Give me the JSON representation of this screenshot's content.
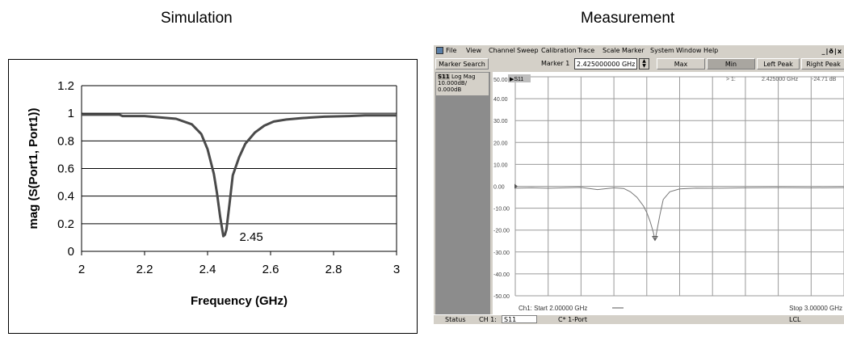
{
  "headings": {
    "simulation": "Simulation",
    "measurement": "Measurement"
  },
  "chart_data": [
    {
      "type": "line",
      "title": "",
      "xlabel": "Frequency (GHz)",
      "ylabel": "mag (S(Port1, Port1))",
      "xlim": [
        2,
        3
      ],
      "ylim": [
        0,
        1.2
      ],
      "xticks": [
        "2",
        "2.2",
        "2.4",
        "2.6",
        "2.8",
        "3"
      ],
      "yticks": [
        "0",
        "0.2",
        "0.4",
        "0.6",
        "0.8",
        "1",
        "1.2"
      ],
      "grid": "horizontal",
      "legend": "none",
      "annotation": {
        "text": "2.45",
        "x": 2.45,
        "y": 0.11
      },
      "series": [
        {
          "color": "#4a4a4a",
          "x": [
            2.0,
            2.12,
            2.13,
            2.2,
            2.3,
            2.35,
            2.38,
            2.4,
            2.42,
            2.43,
            2.44,
            2.45,
            2.455,
            2.46,
            2.47,
            2.48,
            2.5,
            2.52,
            2.55,
            2.58,
            2.61,
            2.65,
            2.7,
            2.77,
            2.85,
            2.9,
            3.0
          ],
          "y": [
            0.99,
            0.99,
            0.98,
            0.98,
            0.96,
            0.92,
            0.85,
            0.74,
            0.56,
            0.42,
            0.25,
            0.11,
            0.12,
            0.16,
            0.35,
            0.55,
            0.68,
            0.78,
            0.86,
            0.91,
            0.94,
            0.955,
            0.965,
            0.975,
            0.98,
            0.985,
            0.985
          ]
        }
      ]
    },
    {
      "type": "line",
      "title": "",
      "trace_label": "S11",
      "format_label": "Log Mag",
      "scale_label": "10.000dB/",
      "ref_label": "0.000dB",
      "xlim": [
        2.0,
        3.0
      ],
      "ylim": [
        -50,
        50
      ],
      "yticks": [
        "50.00",
        "40.00",
        "30.00",
        "20.00",
        "10.00",
        "0.00",
        "-10.00",
        "-20.00",
        "-30.00",
        "-40.00",
        "-50.00"
      ],
      "grid": "on",
      "legend": "none",
      "marker_readout": {
        "number": "> 1:",
        "frequency": "2.425000 GHz",
        "value": "-24.71 dB",
        "x": 2.425,
        "y": -24.71
      },
      "start_label": "Ch1: Start  2.00000 GHz",
      "stop_label": "Stop  3.00000 GHz",
      "series": [
        {
          "color": "#777777",
          "x": [
            2.0,
            2.05,
            2.1,
            2.15,
            2.2,
            2.25,
            2.3,
            2.33,
            2.35,
            2.37,
            2.39,
            2.4,
            2.41,
            2.42,
            2.425,
            2.43,
            2.44,
            2.45,
            2.47,
            2.5,
            2.55,
            2.6,
            2.7,
            2.8,
            2.9,
            3.0
          ],
          "y": [
            -0.8,
            -0.7,
            -0.9,
            -0.7,
            -0.5,
            -1.5,
            -0.7,
            -1.0,
            -2.5,
            -5.0,
            -9.0,
            -12.0,
            -16.0,
            -21.0,
            -24.71,
            -21.0,
            -13.0,
            -6.0,
            -2.5,
            -1.2,
            -0.8,
            -0.9,
            -0.7,
            -0.6,
            -0.7,
            -0.6
          ]
        }
      ]
    }
  ],
  "analyzer": {
    "menu": [
      "File",
      "View",
      "Channel",
      "Sweep",
      "Calibration",
      "Trace",
      "Scale",
      "Marker",
      "System",
      "Window",
      "Help"
    ],
    "window_controls": "_|ð|x",
    "toolbar": {
      "marker_search": "Marker Search",
      "marker_label": "Marker 1",
      "marker_value": "2.425000000 GHz",
      "max": "Max",
      "min": "Min",
      "left_peak": "Left Peak",
      "right_peak": "Right Peak"
    },
    "graph_trace_tag": "▶S11",
    "status": {
      "status": "Status",
      "channel": "CH 1:",
      "param": "S11",
      "port": "C* 1-Port",
      "lcl": "LCL"
    }
  }
}
